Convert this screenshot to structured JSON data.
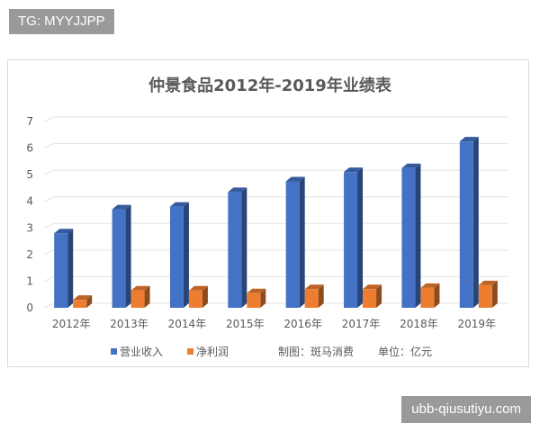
{
  "watermark_top": "TG: MYYJJPP",
  "watermark_bottom": "ubb-qiusutiyu.com",
  "chart_data": {
    "type": "bar",
    "title": "仲景食品2012年-2019年业绩表",
    "categories": [
      "2012年",
      "2013年",
      "2014年",
      "2015年",
      "2016年",
      "2017年",
      "2018年",
      "2019年"
    ],
    "series": [
      {
        "name": "营业收入",
        "color": "#4472c4",
        "values": [
          2.8,
          3.7,
          3.8,
          4.35,
          4.75,
          5.1,
          5.25,
          6.25
        ]
      },
      {
        "name": "净利润",
        "color": "#ed7d31",
        "values": [
          0.3,
          0.65,
          0.65,
          0.55,
          0.7,
          0.7,
          0.75,
          0.85
        ]
      }
    ],
    "ylim": [
      0,
      7
    ],
    "yticks": [
      "0",
      "1",
      "2",
      "3",
      "4",
      "5",
      "6",
      "7"
    ],
    "grid": true,
    "legend_position": "bottom",
    "legend_notes": [
      "制图：斑马消费",
      "单位：亿元"
    ]
  }
}
